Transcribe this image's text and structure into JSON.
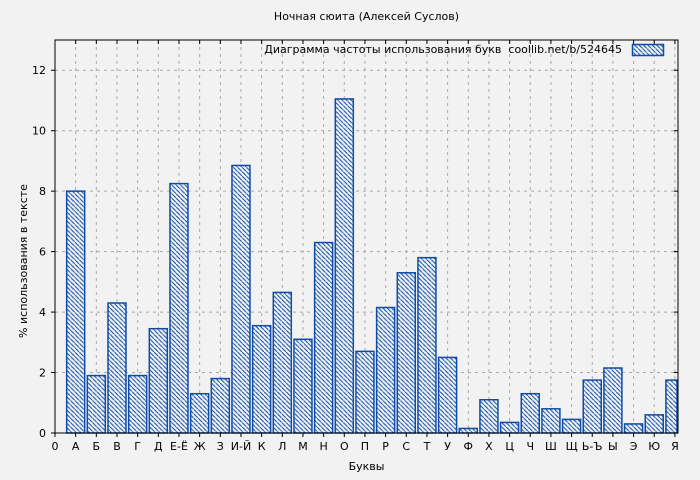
{
  "chart_data": {
    "type": "bar",
    "title": "Ночная сюита (Алексей Суслов)",
    "legend": {
      "label": "Диаграмма частоты использования букв  coollib.net/b/524645",
      "position": "top-right-inside"
    },
    "xlabel": "Буквы",
    "ylabel": "% использования в тексте",
    "origin_label": "0",
    "categories": [
      "А",
      "Б",
      "В",
      "Г",
      "Д",
      "Е-Ё",
      "Ж",
      "З",
      "И-Й",
      "К",
      "Л",
      "М",
      "Н",
      "О",
      "П",
      "Р",
      "С",
      "Т",
      "У",
      "Ф",
      "Х",
      "Ц",
      "Ч",
      "Ш",
      "Щ",
      "Ь-Ъ",
      "Ы",
      "Э",
      "Ю",
      "Я"
    ],
    "values": [
      8.0,
      1.9,
      4.3,
      1.9,
      3.45,
      8.25,
      1.3,
      1.8,
      8.85,
      3.55,
      4.65,
      3.1,
      6.3,
      11.05,
      2.7,
      4.15,
      5.3,
      5.8,
      2.5,
      0.15,
      1.1,
      0.35,
      1.3,
      0.8,
      0.45,
      1.75,
      2.15,
      0.3,
      0.6,
      1.75
    ],
    "yticks": [
      0,
      2,
      4,
      6,
      8,
      10,
      12
    ],
    "ylim": [
      0,
      13
    ],
    "grid": true,
    "hatch_style": "diagonal-backslash",
    "colors": {
      "bar": "#0d4da8",
      "grid": "#a8a8a8",
      "axis": "#000000",
      "background": "#f2f2f2",
      "text": "#000000"
    }
  }
}
